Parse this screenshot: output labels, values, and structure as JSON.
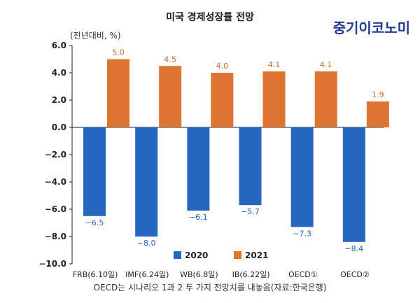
{
  "header": {
    "title": "미국 경제성장률 전망",
    "unit": "(전년대비, %)",
    "brand": "중기이코노미"
  },
  "footer": {
    "note": "OECD는 시나리오 1과 2 두 가지 전망치를 내놓음(자료:한국은행)"
  },
  "colors": {
    "series_2020": "#2566c0",
    "series_2021": "#dd7431",
    "label_2020": "#2566c0",
    "label_2021": "#c96a2a"
  },
  "chart_data": {
    "type": "bar",
    "title": "미국 경제성장률 전망",
    "ylabel": "(전년대비, %)",
    "xlabel": "",
    "categories": [
      "FRB(6.10일)",
      "IMF(6.24일)",
      "WB(6.8일)",
      "IB(6.22일)",
      "OECD①",
      "OECD②"
    ],
    "series": [
      {
        "name": "2020",
        "values": [
          -6.5,
          -8.0,
          -6.1,
          -5.7,
          -7.3,
          -8.4
        ],
        "labels": [
          "−6.5",
          "−8.0",
          "−6.1",
          "−5.7",
          "−7.3",
          "−8.4"
        ]
      },
      {
        "name": "2021",
        "values": [
          5.0,
          4.5,
          4.0,
          4.1,
          4.1,
          1.9
        ],
        "labels": [
          "5.0",
          "4.5",
          "4.0",
          "4.1",
          "4.1",
          "1.9"
        ]
      }
    ],
    "yticks": [
      6,
      4,
      2,
      0,
      -2,
      -4,
      -6,
      -8,
      -10
    ],
    "ytick_labels": [
      "6.0",
      "4.0",
      "2.0",
      "0.0",
      "−2.0",
      "−4.0",
      "−6.0",
      "−8.0",
      "−10.0"
    ],
    "ylim": [
      -10,
      6
    ],
    "legend_position": "bottom-center",
    "grid": false
  }
}
